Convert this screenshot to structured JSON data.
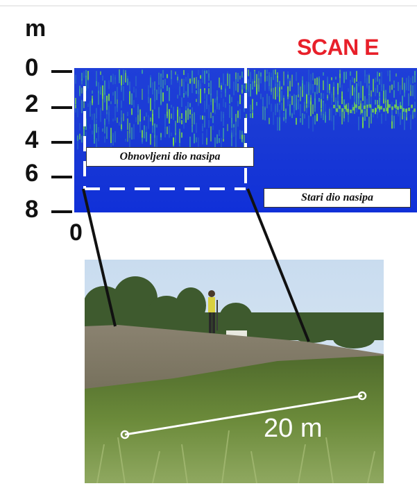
{
  "axis": {
    "unit_label": "m",
    "y_ticks": [
      "0",
      "2",
      "4",
      "6",
      "8"
    ],
    "x_origin": "0"
  },
  "scan": {
    "title": "SCAN E",
    "title_color": "#e8202a",
    "renewed_label": "Obnovljeni dio nasipa",
    "old_label": "Stari dio nasipa",
    "background_color": "#1133d6",
    "anomaly_color": "#7fe040"
  },
  "photo": {
    "scale_label": "20 m"
  }
}
